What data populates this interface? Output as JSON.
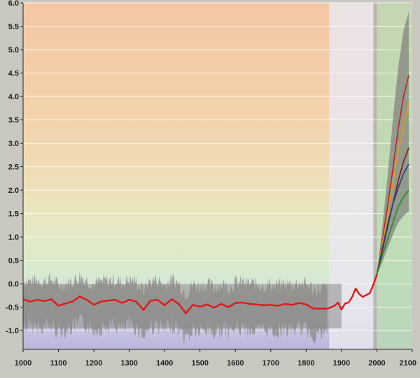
{
  "chart_data": {
    "type": "line",
    "title": "",
    "xlabel": "",
    "ylabel": "",
    "xlim": [
      1000,
      2100
    ],
    "ylim": [
      -1.4,
      6.0
    ],
    "x_ticks": [
      1000,
      1100,
      1200,
      1300,
      1400,
      1500,
      1600,
      1700,
      1800,
      1900,
      2000,
      2100
    ],
    "x_tick_labels": [
      "1000",
      "1100",
      "1200",
      "1300",
      "1400",
      "1500",
      "1600",
      "1700",
      "1800",
      "1900",
      "2000",
      "2100"
    ],
    "y_ticks": [
      -1.0,
      -0.5,
      0.0,
      0.5,
      1.0,
      1.5,
      2.0,
      2.5,
      3.0,
      3.5,
      4.0,
      4.5,
      5.0,
      5.5,
      6.0
    ],
    "y_tick_labels": [
      "-1.0",
      "-0.5",
      "0.0",
      "0.5",
      "1.0",
      "1.5",
      "2.0",
      "2.5",
      "3.0",
      "3.5",
      "4.0",
      "4.5",
      "5.0",
      "5.5",
      "6.0"
    ],
    "grid": true,
    "regions": [
      {
        "from": 1865,
        "to": 1990,
        "color": "#e9e6ee"
      },
      {
        "from": 1990,
        "to": 2000,
        "color": "#b3b1ad"
      },
      {
        "from": 2000,
        "to": 2100,
        "color": "#b9d9b4"
      }
    ],
    "series": [
      {
        "color": "#e01818",
        "x": [
          1000,
          1020,
          1040,
          1060,
          1080,
          1100,
          1120,
          1140,
          1160,
          1180,
          1200,
          1220,
          1240,
          1260,
          1280,
          1300,
          1320,
          1340,
          1360,
          1380,
          1400,
          1420,
          1440,
          1460,
          1480,
          1500,
          1520,
          1540,
          1560,
          1580,
          1600,
          1620,
          1640,
          1660,
          1680,
          1700,
          1720,
          1740,
          1760,
          1780,
          1800,
          1820,
          1840,
          1860,
          1880,
          1890,
          1900,
          1910,
          1920,
          1930,
          1940,
          1950,
          1960,
          1970,
          1980,
          1990,
          2000
        ],
        "values": [
          -0.33,
          -0.38,
          -0.34,
          -0.37,
          -0.33,
          -0.47,
          -0.42,
          -0.38,
          -0.27,
          -0.34,
          -0.45,
          -0.38,
          -0.36,
          -0.34,
          -0.41,
          -0.34,
          -0.38,
          -0.56,
          -0.36,
          -0.34,
          -0.46,
          -0.33,
          -0.43,
          -0.63,
          -0.45,
          -0.49,
          -0.44,
          -0.51,
          -0.43,
          -0.5,
          -0.41,
          -0.4,
          -0.43,
          -0.44,
          -0.46,
          -0.45,
          -0.47,
          -0.43,
          -0.45,
          -0.41,
          -0.44,
          -0.53,
          -0.53,
          -0.53,
          -0.47,
          -0.4,
          -0.55,
          -0.42,
          -0.4,
          -0.28,
          -0.1,
          -0.22,
          -0.28,
          -0.24,
          -0.2,
          -0.02,
          0.2
        ]
      }
    ],
    "projections": [
      {
        "color": "#c0202a",
        "values": [
          0.2,
          0.9,
          1.65,
          2.45,
          3.3,
          4.0,
          4.45
        ]
      },
      {
        "color": "#e8961e",
        "values": [
          0.2,
          0.85,
          1.45,
          2.15,
          2.8,
          3.35,
          3.85
        ]
      },
      {
        "color": "#7a1a22",
        "values": [
          0.2,
          0.7,
          1.2,
          1.7,
          2.2,
          2.6,
          2.9
        ]
      },
      {
        "color": "#2a3a7a",
        "values": [
          0.2,
          0.75,
          1.25,
          1.7,
          2.05,
          2.35,
          2.55
        ]
      },
      {
        "color": "#1e8a30",
        "values": [
          0.2,
          0.6,
          0.95,
          1.3,
          1.65,
          1.85,
          2.0
        ]
      }
    ],
    "projection_x": [
      2000,
      2015,
      2030,
      2045,
      2060,
      2075,
      2090
    ],
    "projection_envelope": {
      "upper": [
        0.2,
        1.2,
        2.3,
        3.5,
        4.6,
        5.4,
        5.8
      ],
      "lower": [
        0.2,
        0.45,
        0.75,
        1.05,
        1.3,
        1.45,
        1.55
      ]
    },
    "reconstruction_uncertainty": {
      "upper": 0.0,
      "lower": -0.95
    }
  }
}
